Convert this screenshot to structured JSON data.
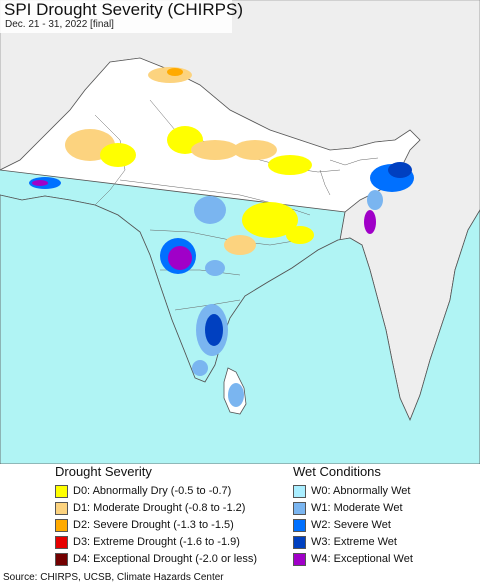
{
  "title": "SPI Drought Severity (CHIRPS)",
  "subtitle": "Dec. 21 - 31, 2022 [final]",
  "colors": {
    "ocean": "#b0f4f4",
    "land": "#ffffff",
    "outside_land": "#eeeeee",
    "border": "#555555",
    "D0": "#ffff00",
    "D1": "#fcd37f",
    "D2": "#ffaa00",
    "D3": "#e60000",
    "D4": "#730000",
    "W0": "#aaeeff",
    "W1": "#7ab5f0",
    "W2": "#0070ff",
    "W3": "#0040c0",
    "W4": "#a000c8"
  },
  "legend": {
    "drought": {
      "heading": "Drought Severity",
      "items": [
        {
          "code": "D0",
          "label": "D0: Abnormally Dry (-0.5 to -0.7)"
        },
        {
          "code": "D1",
          "label": "D1: Moderate Drought (-0.8 to -1.2)"
        },
        {
          "code": "D2",
          "label": "D2: Severe Drought (-1.3 to -1.5)"
        },
        {
          "code": "D3",
          "label": "D3: Extreme Drought (-1.6 to -1.9)"
        },
        {
          "code": "D4",
          "label": "D4: Exceptional Drought (-2.0 or less)"
        }
      ]
    },
    "wet": {
      "heading": "Wet Conditions",
      "items": [
        {
          "code": "W0",
          "label": "W0: Abnormally Wet"
        },
        {
          "code": "W1",
          "label": "W1: Moderate Wet"
        },
        {
          "code": "W2",
          "label": "W2: Severe Wet"
        },
        {
          "code": "W3",
          "label": "W3: Extreme Wet"
        },
        {
          "code": "W4",
          "label": "W4: Exceptional Wet"
        }
      ]
    }
  },
  "source": "Source: CHIRPS, UCSB, Climate Hazards Center"
}
